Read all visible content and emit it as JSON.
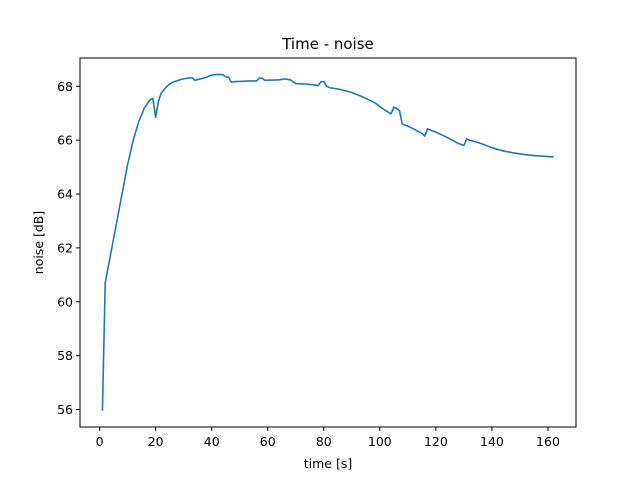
{
  "chart_data": {
    "type": "line",
    "title": "Time - noise",
    "xlabel": "time [s]",
    "ylabel": "noise [dB]",
    "xlim": [
      -7,
      170
    ],
    "ylim": [
      55.35,
      69.05
    ],
    "grid": false,
    "xticks": [
      {
        "value": 0,
        "label": "0"
      },
      {
        "value": 20,
        "label": "20"
      },
      {
        "value": 40,
        "label": "40"
      },
      {
        "value": 60,
        "label": "60"
      },
      {
        "value": 80,
        "label": "80"
      },
      {
        "value": 100,
        "label": "100"
      },
      {
        "value": 120,
        "label": "120"
      },
      {
        "value": 140,
        "label": "140"
      },
      {
        "value": 160,
        "label": "160"
      }
    ],
    "yticks": [
      {
        "value": 56,
        "label": "56"
      },
      {
        "value": 58,
        "label": "58"
      },
      {
        "value": 60,
        "label": "60"
      },
      {
        "value": 62,
        "label": "62"
      },
      {
        "value": 64,
        "label": "64"
      },
      {
        "value": 66,
        "label": "66"
      },
      {
        "value": 68,
        "label": "68"
      }
    ],
    "series": [
      {
        "color": "#1f77b4",
        "x": [
          1,
          2,
          4,
          6,
          8,
          10,
          12,
          14,
          16,
          18,
          19,
          20,
          21,
          22,
          24,
          26,
          28,
          30,
          33,
          34,
          35,
          37,
          38,
          40,
          42,
          44,
          45,
          46,
          47,
          48,
          50,
          54,
          56,
          57,
          58,
          59,
          62,
          64,
          66,
          67,
          68,
          70,
          74,
          78,
          79,
          80,
          81,
          82,
          86,
          90,
          94,
          98,
          102,
          104,
          105,
          106,
          107,
          108,
          110,
          112,
          115,
          116,
          117,
          120,
          124,
          128,
          130,
          131,
          132,
          136,
          140,
          144,
          148,
          152,
          156,
          160,
          162
        ],
        "y": [
          55.95,
          60.7,
          61.8,
          62.9,
          64.0,
          65.1,
          66.0,
          66.7,
          67.2,
          67.5,
          67.55,
          66.85,
          67.45,
          67.75,
          68.0,
          68.15,
          68.22,
          68.28,
          68.32,
          68.22,
          68.25,
          68.3,
          68.33,
          68.42,
          68.44,
          68.43,
          68.35,
          68.34,
          68.15,
          68.17,
          68.18,
          68.2,
          68.2,
          68.3,
          68.3,
          68.22,
          68.23,
          68.24,
          68.27,
          68.26,
          68.24,
          68.1,
          68.08,
          68.03,
          68.17,
          68.17,
          68.0,
          67.95,
          67.88,
          67.77,
          67.6,
          67.4,
          67.1,
          66.98,
          67.22,
          67.18,
          67.1,
          66.6,
          66.52,
          66.42,
          66.25,
          66.15,
          66.42,
          66.3,
          66.1,
          65.88,
          65.8,
          66.05,
          66.0,
          65.88,
          65.72,
          65.6,
          65.52,
          65.46,
          65.42,
          65.39,
          65.38
        ]
      }
    ]
  }
}
